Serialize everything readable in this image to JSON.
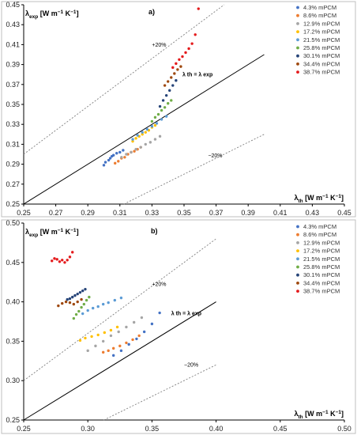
{
  "chart_data": [
    {
      "type": "scatter",
      "panel_label": "a)",
      "xlabel": {
        "sym": "λ",
        "sub": "th",
        "unit": " [W m",
        "sup1": "−1",
        "mid": " K",
        "sup2": "−1",
        "end": "]"
      },
      "ylabel": {
        "sym": "λ",
        "sub": "exp",
        "unit": " [W m",
        "sup1": "−1",
        "mid": " K",
        "sup2": "−1",
        "end": "]"
      },
      "xlim": [
        0.25,
        0.45
      ],
      "ylim": [
        0.25,
        0.45
      ],
      "xticks": [
        "0.25",
        "0.27",
        "0.29",
        "0.31",
        "0.33",
        "0.35",
        "0.37",
        "0.39",
        "0.41",
        "0.43",
        "0.45"
      ],
      "yticks": [
        "0.25",
        "0.27",
        "0.29",
        "0.31",
        "0.33",
        "0.35",
        "0.37",
        "0.39",
        "0.41",
        "0.43",
        "0.45"
      ],
      "grid": false,
      "legend_position": "top-right",
      "annotations": {
        "plus20": "+20%",
        "minus20": "−20%",
        "identity": "λ th = λ exp"
      },
      "lines": [
        {
          "name": "identity",
          "slope": 1.0,
          "style": "solid",
          "x": [
            0.25,
            0.4
          ]
        },
        {
          "name": "+20%",
          "slope": 1.2,
          "style": "dotted",
          "x": [
            0.25,
            0.375
          ]
        },
        {
          "name": "−20%",
          "slope": 0.8,
          "style": "dotted",
          "x": [
            0.3125,
            0.4
          ]
        }
      ],
      "series": [
        {
          "name": "4.3% mPCM",
          "color": "#4472c4",
          "x": [
            0.3,
            0.301,
            0.303,
            0.304,
            0.305,
            0.306,
            0.308,
            0.31,
            0.312
          ],
          "y": [
            0.289,
            0.292,
            0.294,
            0.296,
            0.298,
            0.299,
            0.301,
            0.302,
            0.304
          ]
        },
        {
          "name": "8.6% mPCM",
          "color": "#ed7d31",
          "x": [
            0.307,
            0.309,
            0.311,
            0.313,
            0.315,
            0.317,
            0.319,
            0.321,
            0.323
          ],
          "y": [
            0.291,
            0.293,
            0.296,
            0.297,
            0.3,
            0.302,
            0.303,
            0.305,
            0.307
          ]
        },
        {
          "name": "12.9% mPCM",
          "color": "#a5a5a5",
          "x": [
            0.311,
            0.314,
            0.317,
            0.32,
            0.323,
            0.326,
            0.329,
            0.332,
            0.335
          ],
          "y": [
            0.297,
            0.3,
            0.302,
            0.305,
            0.307,
            0.31,
            0.312,
            0.315,
            0.318
          ]
        },
        {
          "name": "17.2% mPCM",
          "color": "#ffc000",
          "x": [
            0.318,
            0.32,
            0.322,
            0.324,
            0.326,
            0.328,
            0.33,
            0.332
          ],
          "y": [
            0.313,
            0.316,
            0.318,
            0.32,
            0.322,
            0.324,
            0.327,
            0.329
          ]
        },
        {
          "name": "21.5% mPCM",
          "color": "#5b9bd5",
          "x": [
            0.318,
            0.321,
            0.324,
            0.327,
            0.33,
            0.333,
            0.336,
            0.339
          ],
          "y": [
            0.315,
            0.319,
            0.322,
            0.325,
            0.328,
            0.331,
            0.335,
            0.338
          ]
        },
        {
          "name": "25.8% mPCM",
          "color": "#70ad47",
          "x": [
            0.33,
            0.332,
            0.334,
            0.336,
            0.338,
            0.34,
            0.342
          ],
          "y": [
            0.333,
            0.337,
            0.34,
            0.344,
            0.347,
            0.351,
            0.354
          ]
        },
        {
          "name": "30.1% mPCM",
          "color": "#264478",
          "x": [
            0.335,
            0.337,
            0.339,
            0.341,
            0.343,
            0.345
          ],
          "y": [
            0.348,
            0.354,
            0.359,
            0.364,
            0.369,
            0.374
          ]
        },
        {
          "name": "34.4% mPCM",
          "color": "#9e480e",
          "x": [
            0.338,
            0.34,
            0.342,
            0.344,
            0.346,
            0.348
          ],
          "y": [
            0.369,
            0.373,
            0.377,
            0.381,
            0.385,
            0.388
          ]
        },
        {
          "name": "38.7% mPCM",
          "color": "#e41a1c",
          "x": [
            0.343,
            0.345,
            0.347,
            0.349,
            0.351,
            0.353,
            0.355,
            0.357,
            0.359
          ],
          "y": [
            0.387,
            0.391,
            0.395,
            0.398,
            0.402,
            0.406,
            0.411,
            0.42,
            0.446
          ]
        }
      ]
    },
    {
      "type": "scatter",
      "panel_label": "b)",
      "xlabel": {
        "sym": "λ",
        "sub": "th",
        "unit": " [W m",
        "sup1": "−1",
        "mid": " K",
        "sup2": "−1",
        "end": "]"
      },
      "ylabel": {
        "sym": "λ",
        "sub": "exp",
        "unit": " [W m",
        "sup1": "−1",
        "mid": " K",
        "sup2": "−1",
        "end": "]"
      },
      "xlim": [
        0.25,
        0.5
      ],
      "ylim": [
        0.25,
        0.5
      ],
      "xticks": [
        "0.25",
        "0.30",
        "0.35",
        "0.40",
        "0.45",
        "0.50"
      ],
      "yticks": [
        "0.25",
        "0.30",
        "0.35",
        "0.40",
        "0.45",
        "0.50"
      ],
      "grid": false,
      "legend_position": "top-right",
      "annotations": {
        "plus20": "+20%",
        "minus20": "−20%",
        "identity": "λ th = λ exp"
      },
      "lines": [
        {
          "name": "identity",
          "slope": 1.0,
          "style": "solid",
          "x": [
            0.25,
            0.4
          ]
        },
        {
          "name": "+20%",
          "slope": 1.2,
          "style": "dotted",
          "x": [
            0.25,
            0.4
          ]
        },
        {
          "name": "−20%",
          "slope": 0.8,
          "style": "dotted",
          "x": [
            0.3125,
            0.4
          ]
        }
      ],
      "series": [
        {
          "name": "4.3% mPCM",
          "color": "#4472c4",
          "x": [
            0.32,
            0.326,
            0.332,
            0.338,
            0.344,
            0.35,
            0.356
          ],
          "y": [
            0.332,
            0.338,
            0.346,
            0.353,
            0.362,
            0.372,
            0.386
          ]
        },
        {
          "name": "8.6% mPCM",
          "color": "#ed7d31",
          "x": [
            0.312,
            0.316,
            0.32,
            0.325,
            0.33,
            0.335,
            0.34
          ],
          "y": [
            0.336,
            0.338,
            0.341,
            0.344,
            0.348,
            0.352,
            0.357
          ]
        },
        {
          "name": "12.9% mPCM",
          "color": "#a5a5a5",
          "x": [
            0.3,
            0.306,
            0.312,
            0.318,
            0.324,
            0.33,
            0.336,
            0.342
          ],
          "y": [
            0.338,
            0.344,
            0.35,
            0.357,
            0.362,
            0.368,
            0.374,
            0.38
          ]
        },
        {
          "name": "17.2% mPCM",
          "color": "#ffc000",
          "x": [
            0.294,
            0.298,
            0.303,
            0.308,
            0.313,
            0.318,
            0.323
          ],
          "y": [
            0.351,
            0.354,
            0.356,
            0.358,
            0.361,
            0.364,
            0.368
          ]
        },
        {
          "name": "21.5% mPCM",
          "color": "#5b9bd5",
          "x": [
            0.296,
            0.3,
            0.304,
            0.308,
            0.312,
            0.316,
            0.321,
            0.326
          ],
          "y": [
            0.385,
            0.389,
            0.392,
            0.394,
            0.397,
            0.399,
            0.402,
            0.405
          ]
        },
        {
          "name": "25.8% mPCM",
          "color": "#70ad47",
          "x": [
            0.289,
            0.291,
            0.293,
            0.295,
            0.297,
            0.299,
            0.301
          ],
          "y": [
            0.379,
            0.384,
            0.388,
            0.393,
            0.397,
            0.402,
            0.406
          ]
        },
        {
          "name": "30.1% mPCM",
          "color": "#264478",
          "x": [
            0.284,
            0.286,
            0.288,
            0.29,
            0.292,
            0.294,
            0.296,
            0.298
          ],
          "y": [
            0.403,
            0.404,
            0.406,
            0.408,
            0.41,
            0.412,
            0.414,
            0.416
          ]
        },
        {
          "name": "34.4% mPCM",
          "color": "#9e480e",
          "x": [
            0.277,
            0.28,
            0.283,
            0.286,
            0.289,
            0.292,
            0.295
          ],
          "y": [
            0.395,
            0.398,
            0.4,
            0.399,
            0.397,
            0.4,
            0.403
          ]
        },
        {
          "name": "38.7% mPCM",
          "color": "#e41a1c",
          "x": [
            0.272,
            0.274,
            0.276,
            0.278,
            0.28,
            0.282,
            0.284,
            0.286,
            0.288
          ],
          "y": [
            0.452,
            0.455,
            0.454,
            0.451,
            0.453,
            0.45,
            0.453,
            0.457,
            0.463
          ]
        }
      ]
    }
  ]
}
